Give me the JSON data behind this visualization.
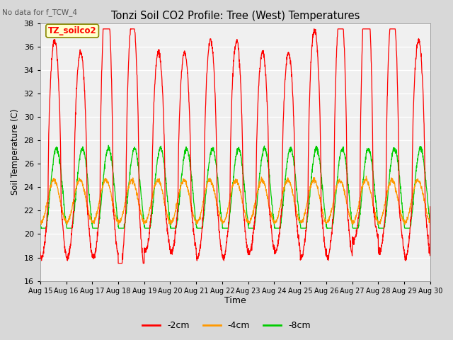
{
  "title": "Tonzi Soil CO2 Profile: Tree (West) Temperatures",
  "subtitle": "No data for f_TCW_4",
  "ylabel": "Soil Temperature (C)",
  "xlabel": "Time",
  "legend_label": "TZ_soilco2",
  "ylim": [
    16,
    38
  ],
  "yticks": [
    16,
    18,
    20,
    22,
    24,
    26,
    28,
    30,
    32,
    34,
    36,
    38
  ],
  "xtick_labels": [
    "Aug 15",
    "Aug 16",
    "Aug 17",
    "Aug 18",
    "Aug 19",
    "Aug 20",
    "Aug 21",
    "Aug 22",
    "Aug 23",
    "Aug 24",
    "Aug 25",
    "Aug 26",
    "Aug 27",
    "Aug 28",
    "Aug 29",
    "Aug 30"
  ],
  "series": [
    {
      "label": "-2cm",
      "color": "#ff0000"
    },
    {
      "label": "-4cm",
      "color": "#ff9900"
    },
    {
      "label": "-8cm",
      "color": "#00cc00"
    }
  ],
  "n_days": 15,
  "points_per_day": 144,
  "figsize": [
    6.4,
    4.8
  ],
  "dpi": 100
}
